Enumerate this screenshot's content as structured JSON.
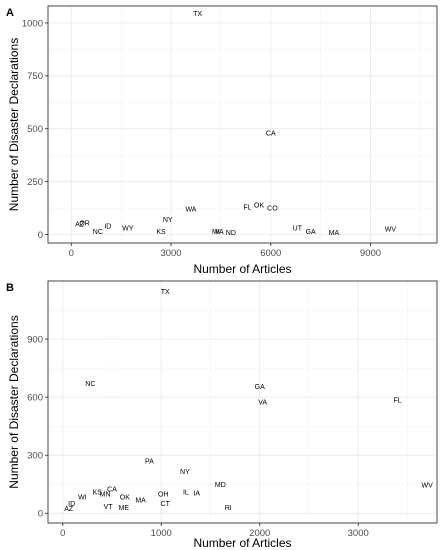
{
  "chart_data": [
    {
      "panel_label": "A",
      "type": "scatter",
      "xlabel": "Number of Articles",
      "ylabel": "Number of Disaster Declarations",
      "xlim": [
        -700,
        11000
      ],
      "ylim": [
        -40,
        1080
      ],
      "x_ticks": [
        0,
        3000,
        6000,
        9000
      ],
      "x_tick_labels": [
        "0",
        "3000",
        "6000",
        "9000"
      ],
      "y_ticks": [
        0,
        250,
        500,
        750,
        1000
      ],
      "y_tick_labels": [
        "0",
        "250",
        "500",
        "750",
        "1000"
      ],
      "grid": true,
      "points": [
        {
          "label": "TX",
          "x": 3800,
          "y": 1045
        },
        {
          "label": "CA",
          "x": 6000,
          "y": 480
        },
        {
          "label": "FL",
          "x": 5300,
          "y": 130
        },
        {
          "label": "OK",
          "x": 5650,
          "y": 140
        },
        {
          "label": "CO",
          "x": 6050,
          "y": 125
        },
        {
          "label": "WA",
          "x": 3600,
          "y": 120
        },
        {
          "label": "NY",
          "x": 2900,
          "y": 70
        },
        {
          "label": "ID",
          "x": 1100,
          "y": 40
        },
        {
          "label": "WY",
          "x": 1700,
          "y": 30
        },
        {
          "label": "KS",
          "x": 2700,
          "y": 15
        },
        {
          "label": "AZ",
          "x": 250,
          "y": 50
        },
        {
          "label": "OR",
          "x": 400,
          "y": 55
        },
        {
          "label": "NC",
          "x": 800,
          "y": 15
        },
        {
          "label": "MI",
          "x": 4350,
          "y": 15
        },
        {
          "label": "VA",
          "x": 4450,
          "y": 15
        },
        {
          "label": "ND",
          "x": 4800,
          "y": 10
        },
        {
          "label": "UT",
          "x": 6800,
          "y": 30
        },
        {
          "label": "GA",
          "x": 7200,
          "y": 15
        },
        {
          "label": "MA",
          "x": 7900,
          "y": 10
        },
        {
          "label": "WV",
          "x": 9600,
          "y": 25
        }
      ]
    },
    {
      "panel_label": "B",
      "type": "scatter",
      "xlabel": "Number of Articles",
      "ylabel": "Number of Disaster Declarations",
      "xlim": [
        -150,
        3800
      ],
      "ylim": [
        -50,
        1200
      ],
      "x_ticks": [
        0,
        1000,
        2000,
        3000
      ],
      "x_tick_labels": [
        "0",
        "1000",
        "2000",
        "3000"
      ],
      "y_ticks": [
        0,
        300,
        600,
        900
      ],
      "y_tick_labels": [
        "0",
        "300",
        "600",
        "900"
      ],
      "grid": true,
      "points": [
        {
          "label": "TX",
          "x": 1040,
          "y": 1145
        },
        {
          "label": "NC",
          "x": 280,
          "y": 670
        },
        {
          "label": "GA",
          "x": 2000,
          "y": 655
        },
        {
          "label": "VA",
          "x": 2030,
          "y": 575
        },
        {
          "label": "FL",
          "x": 3400,
          "y": 585
        },
        {
          "label": "PA",
          "x": 880,
          "y": 270
        },
        {
          "label": "NY",
          "x": 1240,
          "y": 215
        },
        {
          "label": "MD",
          "x": 1600,
          "y": 150
        },
        {
          "label": "WV",
          "x": 3700,
          "y": 145
        },
        {
          "label": "KS",
          "x": 350,
          "y": 110
        },
        {
          "label": "MN",
          "x": 430,
          "y": 100
        },
        {
          "label": "CA",
          "x": 500,
          "y": 125
        },
        {
          "label": "WI",
          "x": 200,
          "y": 85
        },
        {
          "label": "OK",
          "x": 630,
          "y": 85
        },
        {
          "label": "MA",
          "x": 790,
          "y": 70
        },
        {
          "label": "OH",
          "x": 1020,
          "y": 100
        },
        {
          "label": "IL",
          "x": 1250,
          "y": 110
        },
        {
          "label": "IA",
          "x": 1360,
          "y": 105
        },
        {
          "label": "CT",
          "x": 1040,
          "y": 50
        },
        {
          "label": "VT",
          "x": 460,
          "y": 35
        },
        {
          "label": "ME",
          "x": 620,
          "y": 30
        },
        {
          "label": "ID",
          "x": 90,
          "y": 50
        },
        {
          "label": "AZ",
          "x": 60,
          "y": 25
        },
        {
          "label": "RI",
          "x": 1680,
          "y": 30
        }
      ]
    }
  ]
}
